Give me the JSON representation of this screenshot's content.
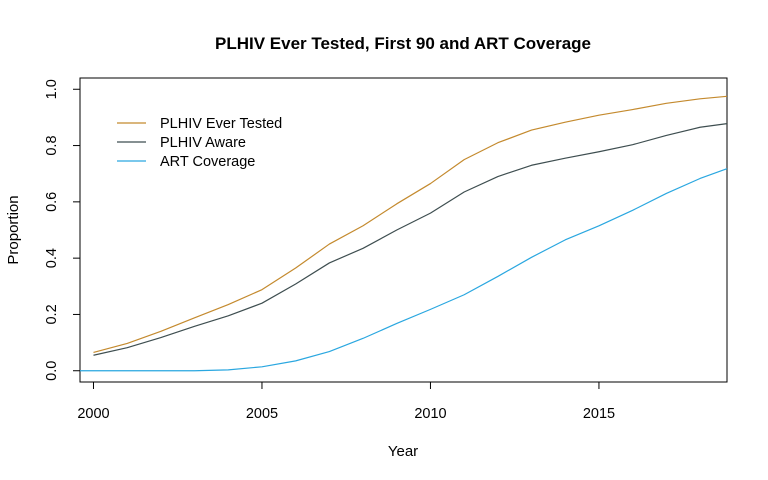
{
  "chart_data": {
    "type": "line",
    "title": "PLHIV Ever Tested, First 90 and ART Coverage",
    "xlabel": "Year",
    "ylabel": "Proportion",
    "xlim": [
      1999.6,
      2018.8
    ],
    "ylim": [
      -0.04,
      1.04
    ],
    "xticks": [
      2000,
      2005,
      2010,
      2015
    ],
    "yticks": [
      0.0,
      0.2,
      0.4,
      0.6,
      0.8,
      1.0
    ],
    "ytick_labels": [
      "0.0",
      "0.2",
      "0.4",
      "0.6",
      "0.8",
      "1.0"
    ],
    "grid": false,
    "legend_position": "top-left",
    "series": [
      {
        "name": "PLHIV Ever Tested",
        "color": "#c48a2e",
        "x": [
          2000,
          2001,
          2002,
          2003,
          2004,
          2005,
          2006,
          2007,
          2008,
          2009,
          2010,
          2011,
          2012,
          2013,
          2014,
          2015,
          2016,
          2017,
          2018,
          2018.8
        ],
        "y": [
          0.065,
          0.097,
          0.14,
          0.188,
          0.235,
          0.288,
          0.365,
          0.45,
          0.515,
          0.593,
          0.665,
          0.75,
          0.81,
          0.855,
          0.883,
          0.908,
          0.928,
          0.95,
          0.966,
          0.975
        ]
      },
      {
        "name": "PLHIV Aware",
        "color": "#3e4e50",
        "x": [
          2000,
          2001,
          2002,
          2003,
          2004,
          2005,
          2006,
          2007,
          2008,
          2009,
          2010,
          2011,
          2012,
          2013,
          2014,
          2015,
          2016,
          2017,
          2018,
          2018.8
        ],
        "y": [
          0.055,
          0.082,
          0.118,
          0.158,
          0.195,
          0.24,
          0.308,
          0.383,
          0.435,
          0.5,
          0.56,
          0.635,
          0.69,
          0.73,
          0.755,
          0.778,
          0.803,
          0.836,
          0.865,
          0.878
        ]
      },
      {
        "name": "ART Coverage",
        "color": "#2aa7e0",
        "x": [
          1999.6,
          2000,
          2001,
          2002,
          2003,
          2004,
          2005,
          2006,
          2007,
          2008,
          2009,
          2010,
          2011,
          2012,
          2013,
          2014,
          2015,
          2016,
          2017,
          2018,
          2018.8
        ],
        "y": [
          0.0,
          0.0,
          0.0,
          0.0,
          0.0,
          0.003,
          0.014,
          0.035,
          0.068,
          0.115,
          0.168,
          0.218,
          0.27,
          0.335,
          0.403,
          0.465,
          0.515,
          0.57,
          0.63,
          0.683,
          0.718
        ]
      }
    ]
  }
}
